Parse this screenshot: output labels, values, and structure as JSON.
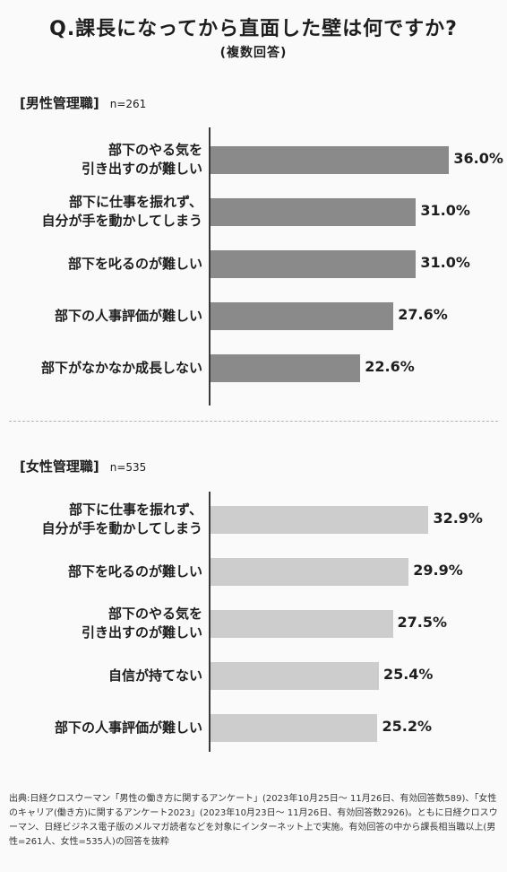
{
  "title": "Q.課長になってから直面した壁は何ですか?",
  "subtitle": "(複数回答)",
  "male": {
    "heading": "[男性管理職]",
    "n_label": "n=261"
  },
  "female": {
    "heading": "[女性管理職]",
    "n_label": "n=535"
  },
  "chart_data": [
    {
      "type": "bar",
      "orientation": "horizontal",
      "title": "[男性管理職]",
      "categories": [
        "部下のやる気を\n引き出すのが難しい",
        "部下に仕事を振れず、\n自分が手を動かしてしまう",
        "部下を叱るのが難しい",
        "部下の人事評価が難しい",
        "部下がなかなか成長しない"
      ],
      "values": [
        36.0,
        31.0,
        31.0,
        27.6,
        22.6
      ],
      "value_labels": [
        "36.0%",
        "31.0%",
        "31.0%",
        "27.6%",
        "22.6%"
      ],
      "unit": "%",
      "bar_color": "#8a8a8a",
      "xlim": [
        0,
        40
      ],
      "grid": false
    },
    {
      "type": "bar",
      "orientation": "horizontal",
      "title": "[女性管理職]",
      "categories": [
        "部下に仕事を振れず、\n自分が手を動かしてしまう",
        "部下を叱るのが難しい",
        "部下のやる気を\n引き出すのが難しい",
        "自信が持てない",
        "部下の人事評価が難しい"
      ],
      "values": [
        32.9,
        29.9,
        27.5,
        25.4,
        25.2
      ],
      "value_labels": [
        "32.9%",
        "29.9%",
        "27.5%",
        "25.4%",
        "25.2%"
      ],
      "unit": "%",
      "bar_color": "#cdcdcd",
      "xlim": [
        0,
        40
      ],
      "grid": false
    }
  ],
  "footer": "出典:日経クロスウーマン「男性の働き方に関するアンケート」(2023年10月25日〜 11月26日、有効回答数589)、「女性のキャリア(働き方)に関するアンケート2023」(2023年10月23日〜 11月26日、有効回答数2926)。ともに日経クロスウーマン、日経ビジネス電子版のメルマガ読者などを対象にインターネット上で実施。有効回答の中から課長相当職以上(男性=261人、女性=535人)の回答を抜粋"
}
